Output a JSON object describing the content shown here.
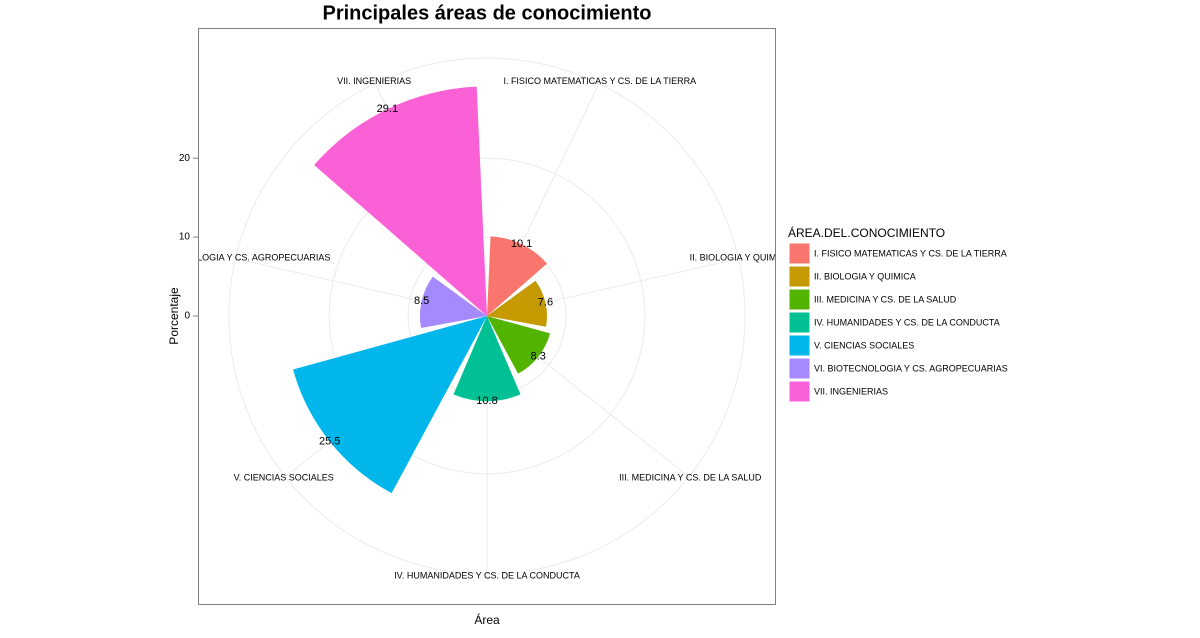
{
  "chart_data": {
    "type": "polar-bar",
    "title": "Principales áreas de conocimiento",
    "x_label": "Área",
    "y_label": "Porcentaje",
    "legend_title": "ÁREA.DEL.CONOCIMIENTO",
    "categories": [
      "I. FISICO MATEMATICAS Y CS. DE LA TIERRA",
      "II. BIOLOGIA Y QUIMICA",
      "III. MEDICINA Y CS. DE LA SALUD",
      "IV. HUMANIDADES Y CS. DE LA CONDUCTA",
      "V. CIENCIAS SOCIALES",
      "VI. BIOTECNOLOGIA Y CS. AGROPECUARIAS",
      "VII. INGENIERIAS"
    ],
    "values": [
      10.1,
      7.6,
      8.3,
      10.8,
      25.5,
      8.5,
      29.1
    ],
    "colors": [
      "#F8766D",
      "#C49A00",
      "#53B400",
      "#00C094",
      "#00B6EB",
      "#A58AFF",
      "#FB61D7"
    ],
    "ylim": [
      0,
      32.7
    ],
    "yticks": [
      0,
      10,
      20
    ],
    "grid": true
  }
}
